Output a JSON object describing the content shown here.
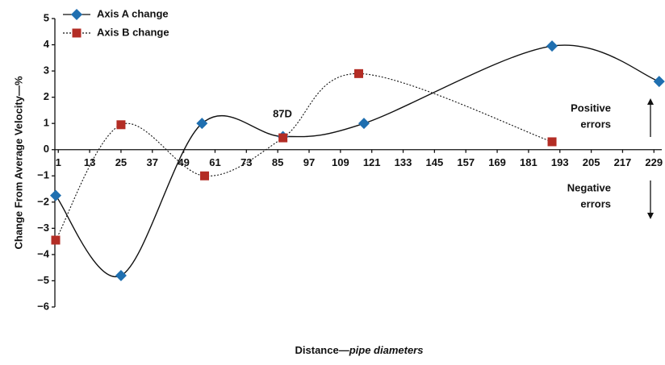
{
  "chart_data": {
    "type": "line",
    "y_label": "Change From Average Velocity—%",
    "x_label": "Distance—",
    "x_label_italic": "pipe diameters",
    "xlim": [
      0,
      232
    ],
    "xticks": [
      1,
      13,
      25,
      37,
      49,
      61,
      73,
      85,
      97,
      109,
      121,
      133,
      145,
      157,
      169,
      181,
      193,
      205,
      217,
      229
    ],
    "ylim": [
      -6,
      5
    ],
    "yticks": [
      {
        "value": -6,
        "label": "−6"
      },
      {
        "value": -5,
        "label": "−5"
      },
      {
        "value": -4,
        "label": "−4"
      },
      {
        "value": -3,
        "label": "−3"
      },
      {
        "value": -2,
        "label": "−2"
      },
      {
        "value": -1,
        "label": "−1"
      },
      0,
      1,
      2,
      3,
      4,
      5
    ],
    "legend": "top-left",
    "series": [
      {
        "name": "Axis A change",
        "color": "#1f6fb0",
        "marker": "diamond",
        "line": "solid",
        "x": [
          0,
          25,
          56,
          87,
          118,
          190,
          231
        ],
        "values": [
          -1.75,
          -4.8,
          1.0,
          0.5,
          1.0,
          3.95,
          2.6
        ]
      },
      {
        "name": "Axis B change",
        "color": "#b32d25",
        "marker": "square",
        "line": "dotted",
        "x": [
          0,
          25,
          57,
          87,
          116,
          190
        ],
        "values": [
          -3.45,
          0.95,
          -1.0,
          0.45,
          2.9,
          0.3
        ]
      }
    ],
    "annotations": {
      "point_label": "87D",
      "positive": [
        "Positive",
        "errors"
      ],
      "negative": [
        "Negative",
        "errors"
      ]
    }
  }
}
